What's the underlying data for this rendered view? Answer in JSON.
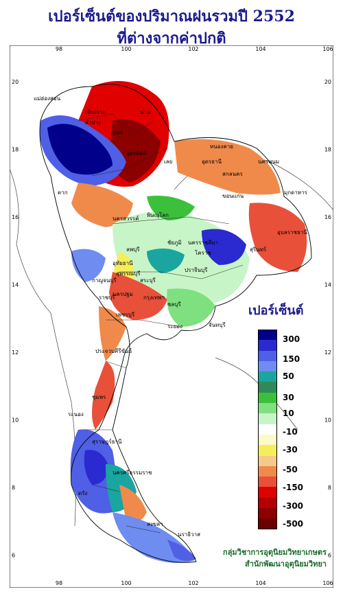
{
  "title_line1": "เปอร์เซ็นต์ของปริมาณฝนรวมปี 2552",
  "title_line2": "ที่ต่างจากค่าปกติ",
  "lon_ticks": [
    "98",
    "100",
    "102",
    "104",
    "106"
  ],
  "lat_ticks": [
    "20",
    "18",
    "16",
    "14",
    "12",
    "10",
    "8",
    "6"
  ],
  "legend": {
    "title": "เปอร์เซ็นต์",
    "labels": [
      "300",
      "150",
      "50",
      "30",
      "10",
      "-10",
      "-30",
      "-50",
      "-150",
      "-300",
      "-500"
    ],
    "colors": [
      "#00008b",
      "#2a2ad0",
      "#4f5fe6",
      "#6f8cf0",
      "#1aa5a0",
      "#2e8b57",
      "#3cc03c",
      "#7fe07f",
      "#c8f5c8",
      "#ffffff",
      "#fbfbc8",
      "#f5ee5a",
      "#f5c98a",
      "#f08a4b",
      "#e8503a",
      "#e00000",
      "#b40000",
      "#8c0000",
      "#6a0000"
    ]
  },
  "places": [
    "แม่ฮ่องสอน",
    "เชียงราย",
    "ลำปาง",
    "น่าน",
    "แพร่",
    "อุตรดิตถ์",
    "หนองคาย",
    "เลย",
    "อุดรธานี",
    "สกลนคร",
    "นครพนม",
    "ตาก",
    "ขอนแก่น",
    "มุกดาหาร",
    "อุบลราชธานี",
    "พิษณุโลก",
    "นครสวรรค์",
    "ชัยภูมิ",
    "นครราชสีมา",
    "สุรินทร์",
    "โคราช",
    "อุทัยธานี",
    "ลพบุรี",
    "สระบุรี",
    "สุพรรณบุรี",
    "กาญจนบุรี",
    "นครปฐม",
    "ราชบุรี",
    "กรุงเทพฯ",
    "ปราจีนบุรี",
    "ชลบุรี",
    "ระยอง",
    "จันทบุรี",
    "เพชรบุรี",
    "ประจวบคีรีขันธ์",
    "ชุมพร",
    "ระนอง",
    "สุราษฎร์ธานี",
    "นครศรีธรรมราช",
    "ตรัง",
    "สงขลา",
    "นราธิวาส"
  ],
  "credit_line1": "กลุ่มวิชาการอุตุนิยมวิทยาเกษตร",
  "credit_line2": "สำนักพัฒนาอุตุนิยมวิทยา"
}
